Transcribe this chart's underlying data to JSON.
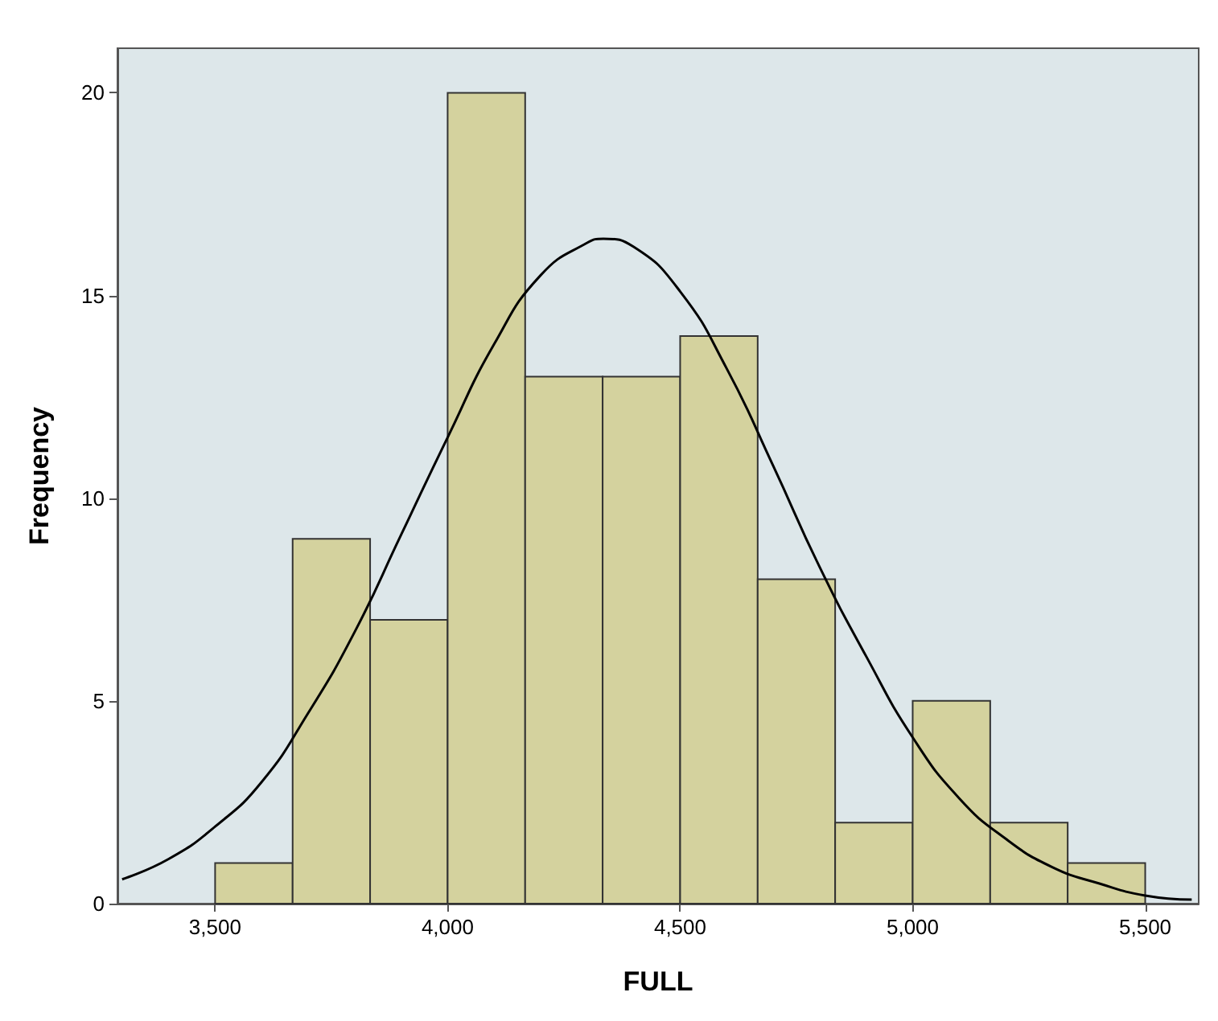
{
  "chart_data": {
    "type": "histogram",
    "xlabel": "FULL",
    "ylabel": "Frequency",
    "bins": [
      3500,
      3666.7,
      3833.3,
      4000,
      4166.7,
      4333.3,
      4500,
      4666.7,
      4833.3,
      5000,
      5166.7,
      5333.3,
      5500
    ],
    "values": [
      1,
      9,
      7,
      20,
      13,
      13,
      14,
      8,
      2,
      5,
      2,
      1
    ],
    "color": "#d4d29e",
    "series": [
      {
        "type": "line",
        "color": "#000000",
        "x": [
          3300,
          3400,
          3500,
          3600,
          3700,
          3800,
          3900,
          4000,
          4100,
          4200,
          4300,
          4335,
          4400,
          4500,
          4600,
          4700,
          4800,
          4900,
          5000,
          5100,
          5200,
          5300,
          5400,
          5500,
          5600
        ],
        "values": [
          0.6,
          1.1,
          1.9,
          3.0,
          4.7,
          6.7,
          9.1,
          11.5,
          13.8,
          15.5,
          16.3,
          16.4,
          16.2,
          15.1,
          13.2,
          10.8,
          8.3,
          6.1,
          4.1,
          2.6,
          1.6,
          0.9,
          0.5,
          0.2,
          0.1
        ]
      }
    ],
    "xlim": [
      3290,
      5615
    ],
    "xticks": [
      {
        "value": 3500,
        "label": "3,500"
      },
      {
        "value": 4000,
        "label": "4,000"
      },
      {
        "value": 4500,
        "label": "4,500"
      },
      {
        "value": 5000,
        "label": "5,000"
      },
      {
        "value": 5500,
        "label": "5,500"
      }
    ],
    "ylim": [
      0,
      21.1
    ],
    "yticks": [
      0,
      5,
      10,
      15,
      20
    ],
    "grid": false,
    "marker": "none",
    "line_style": "solid"
  }
}
